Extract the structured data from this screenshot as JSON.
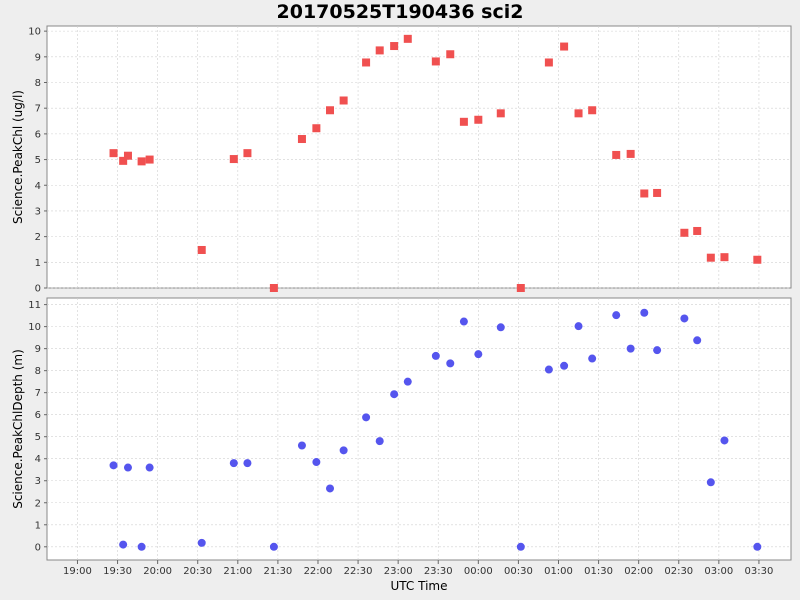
{
  "chart_data": {
    "title": "20170525T190436 sci2",
    "xlabel": "UTC Time",
    "x_ticks": [
      "19:00",
      "19:30",
      "20:00",
      "20:30",
      "21:00",
      "21:30",
      "22:00",
      "22:30",
      "23:00",
      "23:30",
      "00:00",
      "00:30",
      "01:00",
      "01:30",
      "02:00",
      "02:30",
      "03:00",
      "03:30"
    ],
    "x_range_hours": [
      18.62,
      27.9
    ],
    "grid": true,
    "panels": [
      {
        "type": "scatter",
        "ylabel": "Science.PeakChl (ug/l)",
        "ylim": [
          0,
          10.2
        ],
        "y_ticks": [
          0,
          1,
          2,
          3,
          4,
          5,
          6,
          7,
          8,
          9,
          10
        ],
        "marker": "square",
        "color": "#f05050",
        "points": [
          [
            19.45,
            5.25
          ],
          [
            19.57,
            4.95
          ],
          [
            19.63,
            5.15
          ],
          [
            19.8,
            4.93
          ],
          [
            19.9,
            5.0
          ],
          [
            20.55,
            1.48
          ],
          [
            20.95,
            5.02
          ],
          [
            21.12,
            5.25
          ],
          [
            21.45,
            0.0
          ],
          [
            21.8,
            5.8
          ],
          [
            21.98,
            6.22
          ],
          [
            22.15,
            6.92
          ],
          [
            22.32,
            7.3
          ],
          [
            22.6,
            8.78
          ],
          [
            22.77,
            9.25
          ],
          [
            22.95,
            9.42
          ],
          [
            23.12,
            9.7
          ],
          [
            23.47,
            8.82
          ],
          [
            23.65,
            9.1
          ],
          [
            23.82,
            6.47
          ],
          [
            24.0,
            6.55
          ],
          [
            24.28,
            6.8
          ],
          [
            24.53,
            0.0
          ],
          [
            24.88,
            8.78
          ],
          [
            25.07,
            9.4
          ],
          [
            25.25,
            6.8
          ],
          [
            25.42,
            6.92
          ],
          [
            25.72,
            5.18
          ],
          [
            25.9,
            5.22
          ],
          [
            26.07,
            3.68
          ],
          [
            26.23,
            3.7
          ],
          [
            26.57,
            2.15
          ],
          [
            26.73,
            2.22
          ],
          [
            26.9,
            1.18
          ],
          [
            27.07,
            1.2
          ],
          [
            27.48,
            1.1
          ]
        ]
      },
      {
        "type": "scatter",
        "ylabel": "Science.PeakChlDepth (m)",
        "ylim": [
          -0.6,
          11.3
        ],
        "y_ticks": [
          0,
          1,
          2,
          3,
          4,
          5,
          6,
          7,
          8,
          9,
          10,
          11
        ],
        "marker": "circle",
        "color": "#5555ee",
        "points": [
          [
            19.45,
            3.7
          ],
          [
            19.57,
            0.1
          ],
          [
            19.63,
            3.6
          ],
          [
            19.8,
            0.0
          ],
          [
            19.9,
            3.6
          ],
          [
            20.55,
            0.18
          ],
          [
            20.95,
            3.8
          ],
          [
            21.12,
            3.8
          ],
          [
            21.45,
            0.0
          ],
          [
            21.8,
            4.6
          ],
          [
            21.98,
            3.85
          ],
          [
            22.15,
            2.65
          ],
          [
            22.32,
            4.38
          ],
          [
            22.6,
            5.88
          ],
          [
            22.77,
            4.8
          ],
          [
            22.95,
            6.93
          ],
          [
            23.12,
            7.5
          ],
          [
            23.47,
            8.67
          ],
          [
            23.65,
            8.33
          ],
          [
            23.82,
            10.23
          ],
          [
            24.0,
            8.75
          ],
          [
            24.28,
            9.97
          ],
          [
            24.53,
            0.0
          ],
          [
            24.88,
            8.05
          ],
          [
            25.07,
            8.22
          ],
          [
            25.25,
            10.02
          ],
          [
            25.42,
            8.55
          ],
          [
            25.72,
            10.52
          ],
          [
            25.9,
            9.0
          ],
          [
            26.07,
            10.63
          ],
          [
            26.23,
            8.93
          ],
          [
            26.57,
            10.37
          ],
          [
            26.73,
            9.38
          ],
          [
            26.9,
            2.93
          ],
          [
            27.07,
            4.83
          ],
          [
            27.48,
            0.0
          ]
        ]
      }
    ]
  }
}
